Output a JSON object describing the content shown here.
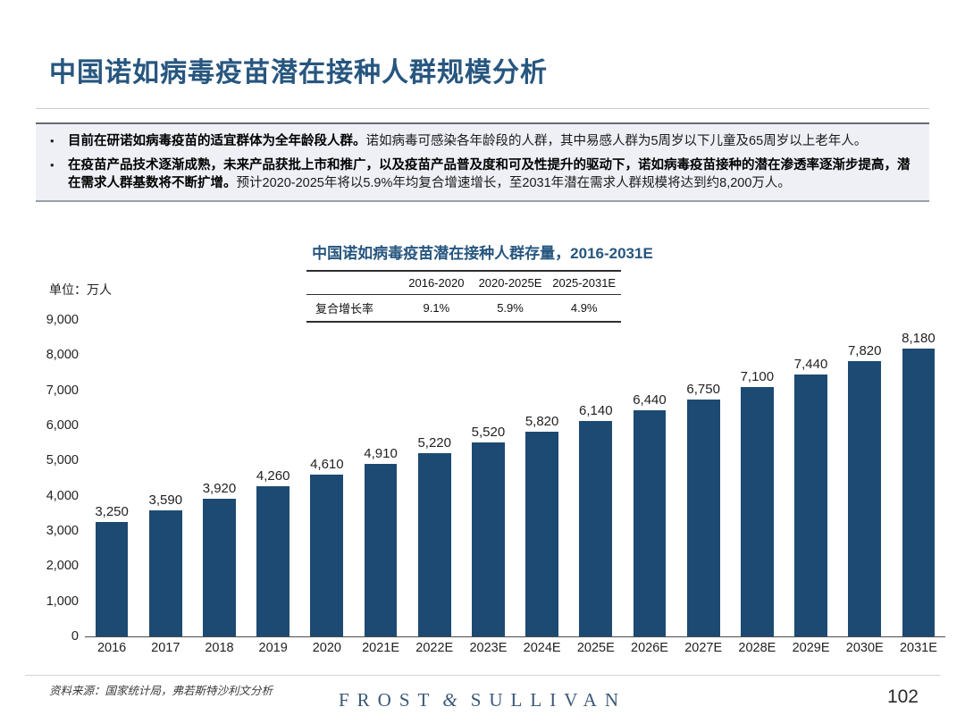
{
  "page": {
    "title": "中国诺如病毒疫苗潜在接种人群规模分析",
    "page_number": "102"
  },
  "colors": {
    "title_navy": "#27567f",
    "bar_navy": "#1c4a72",
    "panel_bg": "#eef0f6"
  },
  "bullets": [
    {
      "bold": "目前在研诺如病毒疫苗的适宜群体为全年龄段人群。",
      "normal": "诺如病毒可感染各年龄段的人群，其中易感人群为5周岁以下儿童及65周岁以上老年人。"
    },
    {
      "bold": "在疫苗产品技术逐渐成熟，未来产品获批上市和推广，以及疫苗产品普及度和可及性提升的驱动下，诺如病毒疫苗接种的潜在渗透率逐渐步提高，潜在需求人群基数将不断扩增。",
      "normal": "预计2020-2025年将以5.9%年均复合增速增长，至2031年潜在需求人群规模将达到约8,200万人。"
    }
  ],
  "chart_data": {
    "type": "bar",
    "title": "中国诺如病毒疫苗潜在接种人群存量，2016-2031E",
    "unit_label": "单位：万人",
    "categories": [
      "2016",
      "2017",
      "2018",
      "2019",
      "2020",
      "2021E",
      "2022E",
      "2023E",
      "2024E",
      "2025E",
      "2026E",
      "2027E",
      "2028E",
      "2029E",
      "2030E",
      "2031E"
    ],
    "values": [
      3250,
      3590,
      3920,
      4260,
      4610,
      4910,
      5220,
      5520,
      5820,
      6140,
      6440,
      6750,
      7100,
      7440,
      7820,
      8180
    ],
    "ylim": [
      0,
      9000
    ],
    "ytick_step": 1000,
    "grid": false,
    "legend": false,
    "bar_color": "#1c4a72",
    "cagr_table": {
      "row_label": "复合增长率",
      "periods": [
        "2016-2020",
        "2020-2025E",
        "2025-2031E"
      ],
      "values": [
        "9.1%",
        "5.9%",
        "4.9%"
      ]
    }
  },
  "footer": {
    "source": "资料来源：国家统计局，弗若斯特沙利文分析",
    "logo": {
      "frost": "FROST",
      "amp": "&",
      "sullivan": "SULLIVAN"
    }
  }
}
